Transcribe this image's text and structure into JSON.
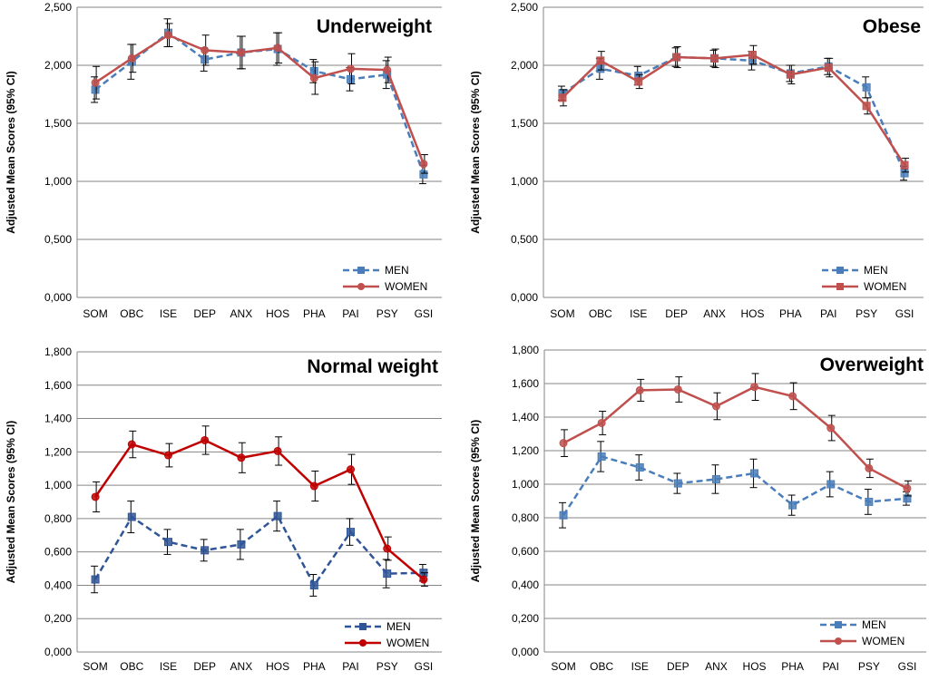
{
  "chart_data": [
    {
      "type": "line",
      "title": "Underweight",
      "ylabel": "Adjusted Mean Scores (95% CI)",
      "xlabel": "",
      "categories": [
        "SOM",
        "OBC",
        "ISE",
        "DEP",
        "ANX",
        "HOS",
        "PHA",
        "PAI",
        "PSY",
        "GSI"
      ],
      "ylim": [
        0,
        2.5
      ],
      "yticks": [
        0,
        0.5,
        1.0,
        1.5,
        2.0,
        2.5
      ],
      "ytick_labels": [
        "0,000",
        "0,500",
        "1,000",
        "1,500",
        "2,000",
        "2,500"
      ],
      "legend": "bottom-right",
      "series": [
        {
          "name": "MEN",
          "color": "#4a7ebb",
          "marker": "square",
          "dashed": true,
          "values": [
            1.79,
            2.03,
            2.28,
            2.05,
            2.11,
            2.14,
            1.95,
            1.88,
            1.92,
            1.06
          ],
          "err": [
            0.11,
            0.15,
            0.12,
            0.1,
            0.14,
            0.14,
            0.1,
            0.1,
            0.12,
            0.08
          ]
        },
        {
          "name": "WOMEN",
          "color": "#c0504d",
          "marker": "circle",
          "dashed": false,
          "values": [
            1.85,
            2.06,
            2.26,
            2.13,
            2.11,
            2.15,
            1.89,
            1.97,
            1.96,
            1.15
          ],
          "err": [
            0.14,
            0.12,
            0.1,
            0.13,
            0.14,
            0.13,
            0.14,
            0.13,
            0.11,
            0.08
          ]
        }
      ]
    },
    {
      "type": "line",
      "title": "Obese",
      "ylabel": "Adjusted Mean Scores (95% CI)",
      "xlabel": "",
      "categories": [
        "SOM",
        "OBC",
        "ISE",
        "DEP",
        "ANX",
        "HOS",
        "PHA",
        "PAI",
        "PSY",
        "GSI"
      ],
      "ylim": [
        0,
        2.5
      ],
      "yticks": [
        0,
        0.5,
        1.0,
        1.5,
        2.0,
        2.5
      ],
      "ytick_labels": [
        "0,000",
        "0,500",
        "1,000",
        "1,500",
        "2,000",
        "2,500"
      ],
      "legend": "bottom-right",
      "series": [
        {
          "name": "MEN",
          "color": "#4a7ebb",
          "marker": "square",
          "dashed": true,
          "values": [
            1.76,
            1.97,
            1.91,
            2.07,
            2.06,
            2.04,
            1.93,
            1.99,
            1.81,
            1.07
          ],
          "err": [
            0.06,
            0.09,
            0.08,
            0.08,
            0.07,
            0.08,
            0.07,
            0.07,
            0.09,
            0.06
          ]
        },
        {
          "name": "WOMEN",
          "color": "#c0504d",
          "marker": "square",
          "dashed": false,
          "values": [
            1.72,
            2.04,
            1.86,
            2.07,
            2.06,
            2.09,
            1.92,
            1.98,
            1.65,
            1.14
          ],
          "err": [
            0.07,
            0.08,
            0.06,
            0.09,
            0.08,
            0.08,
            0.08,
            0.08,
            0.07,
            0.06
          ]
        }
      ]
    },
    {
      "type": "line",
      "title": "Normal weight",
      "ylabel": "Adjusted Mean Scores (95% CI)",
      "xlabel": "",
      "categories": [
        "SOM",
        "OBC",
        "ISE",
        "DEP",
        "ANX",
        "HOS",
        "PHA",
        "PAI",
        "PSY",
        "GSI"
      ],
      "ylim": [
        0,
        1.8
      ],
      "yticks": [
        0,
        0.2,
        0.4,
        0.6,
        0.8,
        1.0,
        1.2,
        1.4,
        1.6,
        1.8
      ],
      "ytick_labels": [
        "0,000",
        "0,200",
        "0,400",
        "0,600",
        "0,800",
        "1,000",
        "1,200",
        "1,400",
        "1,600",
        "1,800"
      ],
      "legend": "bottom-right",
      "series": [
        {
          "name": "MEN",
          "color": "#2f5597",
          "marker": "square",
          "dashed": true,
          "values": [
            0.435,
            0.81,
            0.66,
            0.61,
            0.645,
            0.815,
            0.4,
            0.72,
            0.47,
            0.475
          ],
          "err": [
            0.08,
            0.095,
            0.075,
            0.065,
            0.09,
            0.09,
            0.065,
            0.08,
            0.085,
            0.05
          ]
        },
        {
          "name": "WOMEN",
          "color": "#c00000",
          "marker": "circle",
          "dashed": false,
          "values": [
            0.93,
            1.245,
            1.18,
            1.27,
            1.165,
            1.205,
            0.995,
            1.095,
            0.62,
            0.435
          ],
          "err": [
            0.09,
            0.08,
            0.07,
            0.085,
            0.09,
            0.085,
            0.09,
            0.09,
            0.07,
            0.04
          ]
        }
      ]
    },
    {
      "type": "line",
      "title": "Overweight",
      "ylabel": "Adjusted Mean Scores (95% CI)",
      "xlabel": "",
      "categories": [
        "SOM",
        "OBC",
        "ISE",
        "DEP",
        "ANX",
        "HOS",
        "PHA",
        "PAI",
        "PSY",
        "GSI"
      ],
      "ylim": [
        0,
        1.8
      ],
      "yticks": [
        0,
        0.2,
        0.4,
        0.6,
        0.8,
        1.0,
        1.2,
        1.4,
        1.6,
        1.8
      ],
      "ytick_labels": [
        "0,000",
        "0,200",
        "0,400",
        "0,600",
        "0,800",
        "1,000",
        "1,200",
        "1,400",
        "1,600",
        "1,800"
      ],
      "legend": "bottom-right",
      "series": [
        {
          "name": "MEN",
          "color": "#4a7ebb",
          "marker": "square",
          "dashed": true,
          "values": [
            0.815,
            1.165,
            1.1,
            1.005,
            1.03,
            1.065,
            0.875,
            1.0,
            0.895,
            0.915
          ],
          "err": [
            0.075,
            0.09,
            0.075,
            0.06,
            0.085,
            0.085,
            0.06,
            0.075,
            0.075,
            0.04
          ]
        },
        {
          "name": "WOMEN",
          "color": "#c0504d",
          "marker": "circle",
          "dashed": false,
          "values": [
            1.245,
            1.365,
            1.56,
            1.565,
            1.465,
            1.58,
            1.525,
            1.335,
            1.095,
            0.975
          ],
          "err": [
            0.08,
            0.07,
            0.065,
            0.075,
            0.08,
            0.08,
            0.08,
            0.075,
            0.055,
            0.045
          ]
        }
      ]
    }
  ]
}
